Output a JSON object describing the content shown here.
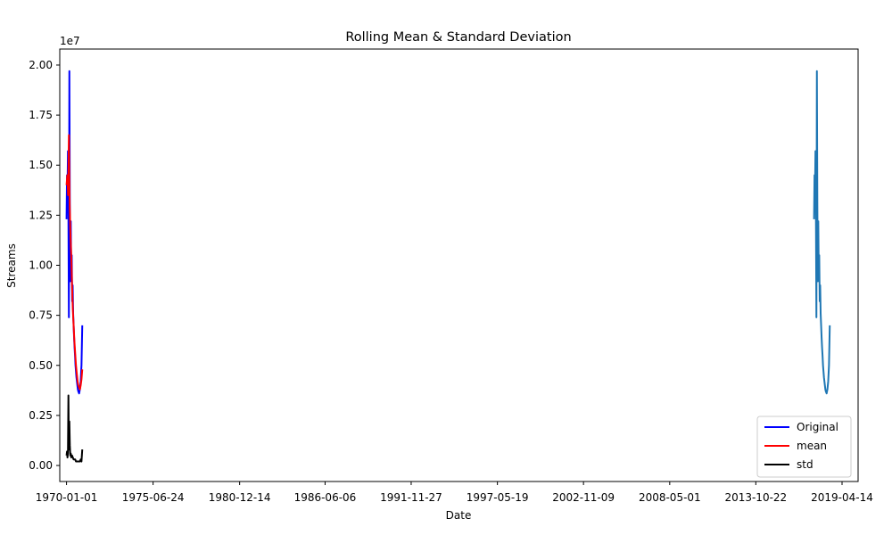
{
  "chart_data": {
    "type": "line",
    "title": "Rolling Mean & Standard Deviation",
    "xlabel": "Date",
    "ylabel": "Streams",
    "y_offset_label": "1e7",
    "ylim": [
      -0.08,
      2.08
    ],
    "xlim": [
      -0.43,
      50.3
    ],
    "grid": false,
    "legend_position": "lower-right",
    "x_ticks": [
      {
        "pos": 0,
        "label": "1970-01-01"
      },
      {
        "pos": 5.5,
        "label": "1975-06-24"
      },
      {
        "pos": 11.0,
        "label": "1980-12-14"
      },
      {
        "pos": 16.43,
        "label": "1986-06-06"
      },
      {
        "pos": 21.9,
        "label": "1991-11-27"
      },
      {
        "pos": 27.38,
        "label": "1997-05-19"
      },
      {
        "pos": 32.85,
        "label": "2002-11-09"
      },
      {
        "pos": 38.33,
        "label": "2008-05-01"
      },
      {
        "pos": 43.8,
        "label": "2013-10-22"
      },
      {
        "pos": 49.28,
        "label": "2019-04-14"
      }
    ],
    "y_ticks": [
      {
        "pos": 0,
        "label": "0.00"
      },
      {
        "pos": 0.25,
        "label": "0.25"
      },
      {
        "pos": 0.5,
        "label": "0.50"
      },
      {
        "pos": 0.75,
        "label": "0.75"
      },
      {
        "pos": 1.0,
        "label": "1.00"
      },
      {
        "pos": 1.25,
        "label": "1.25"
      },
      {
        "pos": 1.5,
        "label": "1.50"
      },
      {
        "pos": 1.75,
        "label": "1.75"
      },
      {
        "pos": 2.0,
        "label": "2.00"
      }
    ],
    "series": [
      {
        "name": "Original",
        "color": "#0000ff",
        "in_legend": true,
        "x": [
          0.0,
          0.03,
          0.06,
          0.09,
          0.12,
          0.15,
          0.18,
          0.21,
          0.24,
          0.27,
          0.3,
          0.33,
          0.36,
          0.39,
          0.42,
          0.45,
          0.48,
          0.51,
          0.54,
          0.57,
          0.6,
          0.63,
          0.66,
          0.69,
          0.72,
          0.75,
          0.8,
          0.85,
          0.9,
          0.95,
          1.0
        ],
        "y": [
          1.23,
          1.45,
          1.37,
          1.57,
          1.25,
          0.74,
          1.97,
          1.3,
          0.92,
          1.22,
          0.95,
          1.05,
          0.82,
          0.9,
          0.76,
          0.7,
          0.64,
          0.59,
          0.55,
          0.5,
          0.47,
          0.44,
          0.42,
          0.4,
          0.38,
          0.37,
          0.36,
          0.38,
          0.42,
          0.5,
          0.7
        ]
      },
      {
        "name": "mean",
        "color": "#ff0000",
        "in_legend": true,
        "x": [
          0.0,
          0.05,
          0.1,
          0.15,
          0.2,
          0.25,
          0.3,
          0.35,
          0.4,
          0.45,
          0.5,
          0.55,
          0.6,
          0.65,
          0.7,
          0.75,
          0.8,
          0.85,
          0.9,
          0.95,
          1.0
        ],
        "y": [
          1.4,
          1.45,
          1.35,
          1.65,
          1.3,
          1.15,
          1.05,
          0.9,
          0.78,
          0.7,
          0.62,
          0.56,
          0.5,
          0.46,
          0.42,
          0.4,
          0.39,
          0.38,
          0.4,
          0.43,
          0.48
        ]
      },
      {
        "name": "std",
        "color": "#000000",
        "in_legend": true,
        "x": [
          0.0,
          0.03,
          0.06,
          0.09,
          0.12,
          0.15,
          0.18,
          0.21,
          0.24,
          0.27,
          0.3,
          0.35,
          0.4,
          0.45,
          0.5,
          0.55,
          0.6,
          0.65,
          0.7,
          0.75,
          0.8,
          0.85,
          0.9,
          0.95,
          1.0
        ],
        "y": [
          0.05,
          0.07,
          0.04,
          0.06,
          0.35,
          0.08,
          0.22,
          0.1,
          0.05,
          0.06,
          0.04,
          0.05,
          0.04,
          0.03,
          0.03,
          0.03,
          0.02,
          0.02,
          0.02,
          0.02,
          0.02,
          0.02,
          0.03,
          0.02,
          0.08
        ]
      },
      {
        "name": "Streams",
        "color": "#1f77b4",
        "in_legend": false,
        "x": [
          47.5,
          47.53,
          47.56,
          47.59,
          47.62,
          47.65,
          47.68,
          47.71,
          47.74,
          47.77,
          47.8,
          47.83,
          47.86,
          47.89,
          47.92,
          47.95,
          47.98,
          48.01,
          48.04,
          48.07,
          48.1,
          48.13,
          48.16,
          48.19,
          48.22,
          48.25,
          48.3,
          48.35,
          48.4,
          48.45,
          48.5
        ],
        "y": [
          1.23,
          1.45,
          1.37,
          1.57,
          1.25,
          0.74,
          1.97,
          1.3,
          0.92,
          1.22,
          0.95,
          1.05,
          0.82,
          0.9,
          0.76,
          0.7,
          0.64,
          0.59,
          0.55,
          0.5,
          0.47,
          0.44,
          0.42,
          0.4,
          0.38,
          0.37,
          0.36,
          0.38,
          0.42,
          0.5,
          0.7
        ]
      }
    ]
  }
}
